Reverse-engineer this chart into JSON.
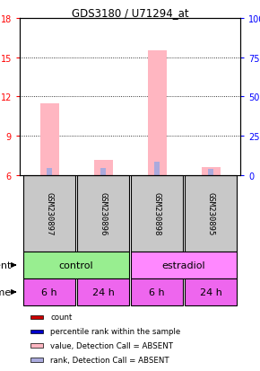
{
  "title": "GDS3180 / U71294_at",
  "samples": [
    "GSM230897",
    "GSM230896",
    "GSM230898",
    "GSM230895"
  ],
  "left_yticks": [
    6,
    9,
    12,
    15,
    18
  ],
  "right_yticks": [
    0,
    25,
    50,
    75,
    100
  ],
  "ylim_left": [
    6,
    18
  ],
  "ylim_right": [
    0,
    100
  ],
  "bar_positions": [
    0,
    1,
    2,
    3
  ],
  "bar_width": 0.35,
  "value_bars": [
    11.5,
    7.2,
    15.5,
    6.6
  ],
  "rank_bars": [
    6.55,
    6.55,
    7.05,
    6.5
  ],
  "value_color": "#FFB6C1",
  "rank_color": "#AAAADD",
  "count_color": "#CC0000",
  "percentile_color": "#0000CC",
  "time_row": [
    "6 h",
    "24 h",
    "6 h",
    "24 h"
  ],
  "agent_colors": [
    "#98EE90",
    "#FF88FF"
  ],
  "time_color": "#EE66EE",
  "sample_box_color": "#C8C8C8",
  "legend_items": [
    {
      "label": "count",
      "color": "#CC0000"
    },
    {
      "label": "percentile rank within the sample",
      "color": "#0000CC"
    },
    {
      "label": "value, Detection Call = ABSENT",
      "color": "#FFB6C1"
    },
    {
      "label": "rank, Detection Call = ABSENT",
      "color": "#AAAADD"
    }
  ]
}
